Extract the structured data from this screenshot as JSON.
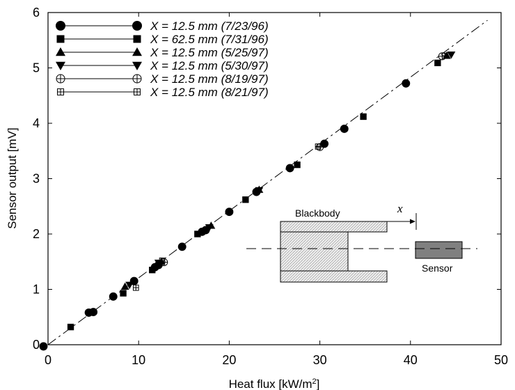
{
  "chart_data": {
    "type": "scatter",
    "xlabel": "Heat flux [kW/m²]",
    "ylabel": "Sensor output [mV]",
    "xlim": [
      0,
      50
    ],
    "ylim": [
      0,
      6
    ],
    "xticks": [
      0,
      10,
      20,
      30,
      40,
      50
    ],
    "yticks": [
      0,
      1,
      2,
      3,
      4,
      5,
      6
    ],
    "grid": false,
    "legend_position": "top-left",
    "fit_line": {
      "style": "dashed",
      "x": [
        0,
        48.5
      ],
      "y": [
        0,
        5.86
      ]
    },
    "series": [
      {
        "name": "X = 12.5 mm (7/23/96)",
        "marker": "circle",
        "x": [
          -0.5,
          4.5,
          5.0,
          7.2,
          9.5,
          11.8,
          12.2,
          14.8,
          17.0,
          17.4,
          20.0,
          23.0,
          26.7,
          30.5,
          32.7,
          39.5
        ],
        "y": [
          -0.03,
          0.58,
          0.59,
          0.87,
          1.15,
          1.4,
          1.44,
          1.77,
          2.04,
          2.07,
          2.4,
          2.76,
          3.19,
          3.63,
          3.9,
          4.72
        ]
      },
      {
        "name": "X = 62.5 mm (7/31/96)",
        "marker": "square",
        "x": [
          2.5,
          8.3,
          11.5,
          16.5,
          21.8,
          27.5,
          34.8,
          43.0
        ],
        "y": [
          0.32,
          0.93,
          1.35,
          2.0,
          2.62,
          3.25,
          4.12,
          5.09
        ]
      },
      {
        "name": "X = 12.5 mm (5/25/97)",
        "marker": "triangle-up",
        "x": [
          8.5,
          12.5,
          18.0,
          23.3,
          44.0
        ],
        "y": [
          1.05,
          1.5,
          2.15,
          2.8,
          5.22
        ]
      },
      {
        "name": "X = 12.5 mm (5/30/97)",
        "marker": "triangle-down",
        "x": [
          9.0,
          12.2,
          17.8,
          23.3,
          44.5
        ],
        "y": [
          1.08,
          1.48,
          2.12,
          2.79,
          5.24
        ]
      },
      {
        "name": "X = 12.5 mm (8/19/97)",
        "marker": "circle-plus",
        "x": [
          12.8,
          30.0,
          43.5
        ],
        "y": [
          1.49,
          3.57,
          5.21
        ]
      },
      {
        "name": "X = 12.5 mm (8/21/97)",
        "marker": "square-plus",
        "x": [
          9.7,
          12.6,
          29.8,
          43.8
        ],
        "y": [
          1.03,
          1.52,
          3.58,
          5.22
        ]
      }
    ],
    "inset": {
      "blackbody_label": "Blackbody",
      "distance_label": "x",
      "sensor_label": "Sensor"
    }
  }
}
